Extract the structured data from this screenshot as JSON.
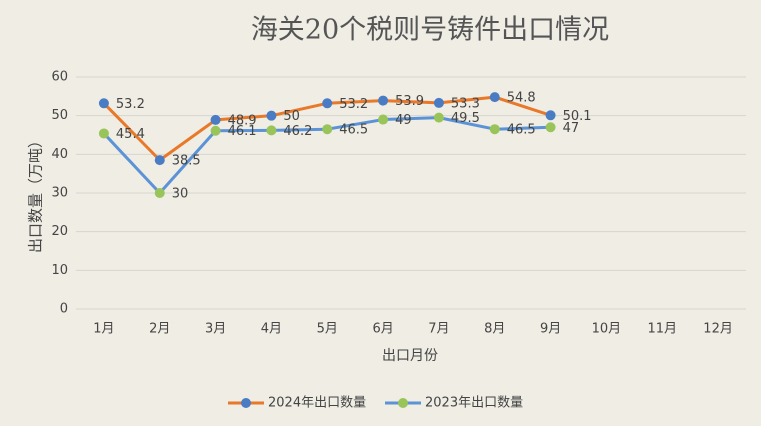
{
  "chart_data": {
    "type": "line",
    "title": "海关20个税则号铸件出口情况",
    "x_label": "出口月份",
    "y_label": "出口数量（万吨）",
    "categories": [
      "1月",
      "2月",
      "3月",
      "4月",
      "5月",
      "6月",
      "7月",
      "8月",
      "9月",
      "10月",
      "11月",
      "12月"
    ],
    "series": [
      {
        "name": "2024年出口数量",
        "color": "#e8782a",
        "marker_color": "#4a7cc4",
        "values": [
          53.2,
          38.5,
          48.9,
          50,
          53.2,
          53.9,
          53.3,
          54.8,
          50.1,
          null,
          null,
          null
        ]
      },
      {
        "name": "2023年出口数量",
        "color": "#5b93d6",
        "marker_color": "#99c45a",
        "values": [
          45.4,
          30,
          46.1,
          46.2,
          46.5,
          49,
          49.5,
          46.5,
          47,
          null,
          null,
          null
        ]
      }
    ],
    "ylim": [
      0,
      60
    ],
    "yticks": [
      0,
      10,
      20,
      30,
      40,
      50,
      60
    ],
    "grid": true,
    "legend": "bottom"
  }
}
